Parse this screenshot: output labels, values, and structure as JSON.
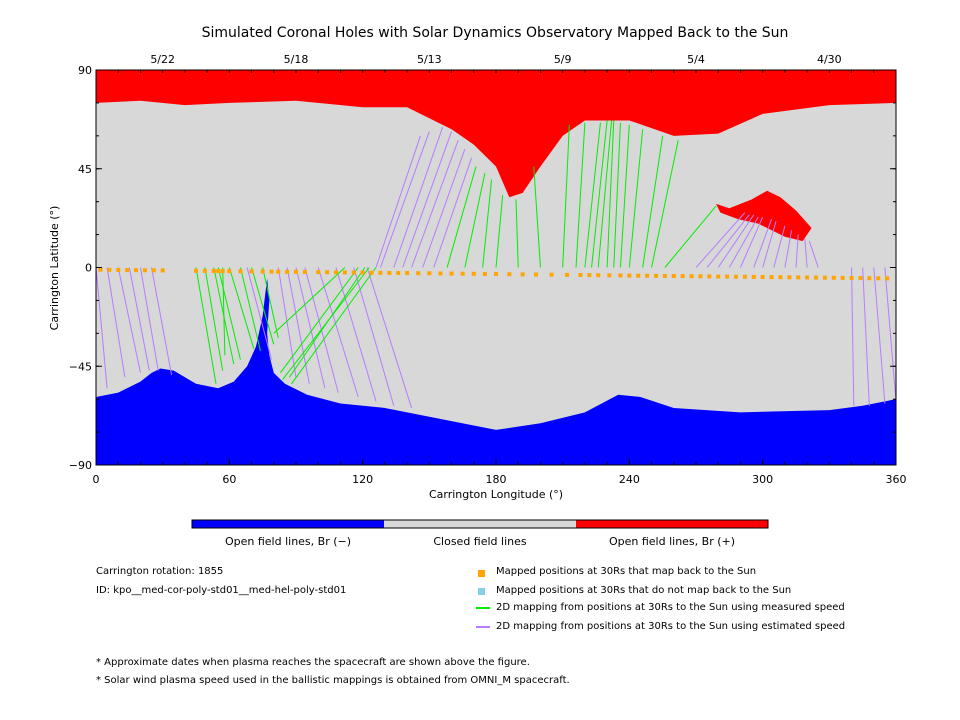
{
  "chart_data": {
    "type": "map",
    "title": "Simulated Coronal Holes with Solar Dynamics Observatory Mapped Back to the Sun",
    "xlabel": "Carrington Longitude (°)",
    "ylabel": "Carrington Latitude (°)",
    "xlim": [
      0,
      360
    ],
    "ylim": [
      -90,
      90
    ],
    "x_ticks": [
      "0",
      "60",
      "120",
      "180",
      "240",
      "300",
      "360"
    ],
    "y_ticks": [
      "90",
      "45",
      "0",
      "−45",
      "−90"
    ],
    "top_dates": [
      {
        "label": "5/22",
        "lon": 30
      },
      {
        "label": "5/18",
        "lon": 90
      },
      {
        "label": "5/13",
        "lon": 150
      },
      {
        "label": "5/9",
        "lon": 210
      },
      {
        "label": "5/4",
        "lon": 270
      },
      {
        "label": "4/30",
        "lon": 330
      }
    ],
    "colors": {
      "negative": "#0000ff",
      "closed": "#d8d8d8",
      "positive": "#ff0000",
      "mapped": "#ffa500",
      "unmapped": "#87ceeb",
      "measured": "#00ee00",
      "estimated": "#b77cff"
    },
    "regions": {
      "south_hole_boundary": [
        [
          0,
          -59
        ],
        [
          10,
          -57
        ],
        [
          20,
          -52
        ],
        [
          25,
          -48
        ],
        [
          29,
          -46
        ],
        [
          35,
          -47
        ],
        [
          45,
          -53
        ],
        [
          55,
          -55
        ],
        [
          62,
          -52
        ],
        [
          68,
          -45
        ],
        [
          72,
          -36
        ],
        [
          75,
          -22
        ],
        [
          77,
          -5
        ],
        [
          78,
          -15
        ],
        [
          77,
          -30
        ],
        [
          78,
          -40
        ],
        [
          80,
          -48
        ],
        [
          85,
          -53
        ],
        [
          95,
          -58
        ],
        [
          110,
          -62
        ],
        [
          130,
          -64
        ],
        [
          160,
          -70
        ],
        [
          180,
          -74
        ],
        [
          200,
          -71
        ],
        [
          220,
          -66
        ],
        [
          235,
          -58
        ],
        [
          245,
          -59
        ],
        [
          260,
          -64
        ],
        [
          290,
          -66
        ],
        [
          330,
          -65
        ],
        [
          345,
          -63
        ],
        [
          360,
          -60
        ]
      ],
      "north_hole_boundary": [
        [
          0,
          75
        ],
        [
          20,
          76
        ],
        [
          40,
          74
        ],
        [
          60,
          75
        ],
        [
          90,
          76
        ],
        [
          120,
          73
        ],
        [
          140,
          73
        ],
        [
          160,
          63
        ],
        [
          170,
          56
        ],
        [
          180,
          46
        ],
        [
          186,
          32
        ],
        [
          192,
          34
        ],
        [
          200,
          46
        ],
        [
          210,
          60
        ],
        [
          220,
          67
        ],
        [
          240,
          67
        ],
        [
          260,
          60
        ],
        [
          280,
          61
        ],
        [
          300,
          70
        ],
        [
          330,
          74
        ],
        [
          360,
          75
        ]
      ],
      "north_island_boundary": [
        [
          279,
          29
        ],
        [
          285,
          27
        ],
        [
          295,
          31
        ],
        [
          302,
          35
        ],
        [
          308,
          32
        ],
        [
          315,
          26
        ],
        [
          322,
          18
        ],
        [
          318,
          12
        ],
        [
          310,
          14
        ],
        [
          298,
          20
        ],
        [
          289,
          22
        ],
        [
          281,
          25
        ]
      ]
    },
    "legend_bar": [
      "Open field lines, Br (−)",
      "Closed field lines",
      "Open field lines, Br (+)"
    ],
    "mapping_series": {
      "measured": [
        [
          45,
          0,
          54,
          -53
        ],
        [
          49,
          0,
          57,
          -47
        ],
        [
          53,
          0,
          62,
          -44
        ],
        [
          55,
          0,
          65,
          -42
        ],
        [
          57,
          0,
          58,
          -40
        ],
        [
          60,
          0,
          71,
          -37
        ],
        [
          65,
          0,
          74,
          -38
        ],
        [
          70,
          0,
          80,
          -35
        ],
        [
          75,
          0,
          82,
          -32
        ],
        [
          112,
          0,
          80,
          -30
        ],
        [
          118,
          0,
          83,
          -48
        ],
        [
          121,
          0,
          87,
          -50
        ],
        [
          123,
          0,
          84,
          -51
        ],
        [
          126,
          0,
          88,
          -53
        ],
        [
          158,
          0,
          171,
          46
        ],
        [
          166,
          0,
          175,
          43
        ],
        [
          174,
          0,
          178,
          40
        ],
        [
          180,
          0,
          183,
          33
        ],
        [
          190,
          0,
          189,
          31
        ],
        [
          200,
          0,
          197,
          46
        ],
        [
          210,
          0,
          213,
          65
        ],
        [
          216,
          0,
          220,
          66
        ],
        [
          220,
          0,
          227,
          66
        ],
        [
          223,
          0,
          230,
          67
        ],
        [
          226,
          0,
          232,
          67
        ],
        [
          230,
          0,
          233,
          67
        ],
        [
          233,
          0,
          236,
          66
        ],
        [
          236,
          0,
          240,
          65
        ],
        [
          240,
          0,
          246,
          63
        ],
        [
          246,
          0,
          255,
          60
        ],
        [
          250,
          0,
          262,
          58
        ],
        [
          256,
          0,
          279,
          28
        ]
      ],
      "estimated": [
        [
          0,
          0,
          5,
          -55
        ],
        [
          5,
          0,
          13,
          -50
        ],
        [
          10,
          0,
          20,
          -48
        ],
        [
          15,
          0,
          24,
          -47
        ],
        [
          20,
          0,
          28,
          -47
        ],
        [
          25,
          0,
          34,
          -49
        ],
        [
          68,
          0,
          79,
          -42
        ],
        [
          82,
          0,
          90,
          -50
        ],
        [
          86,
          0,
          96,
          -53
        ],
        [
          90,
          0,
          103,
          -55
        ],
        [
          94,
          0,
          109,
          -57
        ],
        [
          100,
          0,
          118,
          -59
        ],
        [
          108,
          0,
          126,
          -61
        ],
        [
          116,
          0,
          134,
          -63
        ],
        [
          122,
          0,
          142,
          -64
        ],
        [
          126,
          0,
          146,
          60
        ],
        [
          128,
          0,
          150,
          62
        ],
        [
          134,
          0,
          156,
          64
        ],
        [
          138,
          0,
          160,
          62
        ],
        [
          142,
          0,
          163,
          58
        ],
        [
          147,
          0,
          166,
          54
        ],
        [
          152,
          0,
          169,
          50
        ],
        [
          270,
          0,
          292,
          25
        ],
        [
          275,
          0,
          294,
          24
        ],
        [
          280,
          0,
          296,
          24
        ],
        [
          285,
          0,
          298,
          23
        ],
        [
          290,
          0,
          300,
          23
        ],
        [
          296,
          0,
          304,
          22
        ],
        [
          300,
          0,
          306,
          21
        ],
        [
          305,
          0,
          310,
          19
        ],
        [
          310,
          0,
          313,
          17
        ],
        [
          315,
          0,
          316,
          15
        ],
        [
          320,
          0,
          319,
          13
        ],
        [
          325,
          0,
          321,
          12
        ],
        [
          340,
          0,
          341,
          -63
        ],
        [
          345,
          0,
          348,
          -63
        ],
        [
          350,
          0,
          355,
          -62
        ],
        [
          355,
          0,
          360,
          -61
        ]
      ],
      "points": [
        2,
        6,
        10,
        14,
        18,
        22,
        26,
        30,
        45,
        49,
        53,
        55,
        57,
        60,
        65,
        70,
        75,
        79,
        82,
        86,
        90,
        94,
        100,
        104,
        108,
        112,
        116,
        120,
        124,
        128,
        132,
        136,
        140,
        145,
        150,
        155,
        160,
        165,
        170,
        175,
        180,
        186,
        192,
        198,
        205,
        212,
        218,
        222,
        226,
        231,
        236,
        240,
        244,
        248,
        252,
        256,
        260,
        264,
        268,
        272,
        276,
        280,
        284,
        288,
        292,
        296,
        300,
        304,
        308,
        312,
        316,
        320,
        324,
        328,
        332,
        336,
        340,
        344,
        348,
        352,
        356
      ]
    },
    "legend_markers": [
      "Mapped positions at 30Rs that map back to the Sun",
      "Mapped positions at 30Rs that do not map back to the Sun",
      "2D mapping from positions at 30Rs to the Sun using measured speed",
      "2D mapping from positions at 30Rs to the Sun using estimated speed"
    ],
    "info": {
      "rotation": "Carrington rotation: 1855",
      "id": "ID: kpo__med-cor-poly-std01__med-hel-poly-std01"
    },
    "footnotes": [
      "* Approximate dates when plasma reaches the spacecraft are shown above the figure.",
      "* Solar wind plasma speed used in the ballistic mappings is obtained from OMNI_M spacecraft."
    ]
  }
}
